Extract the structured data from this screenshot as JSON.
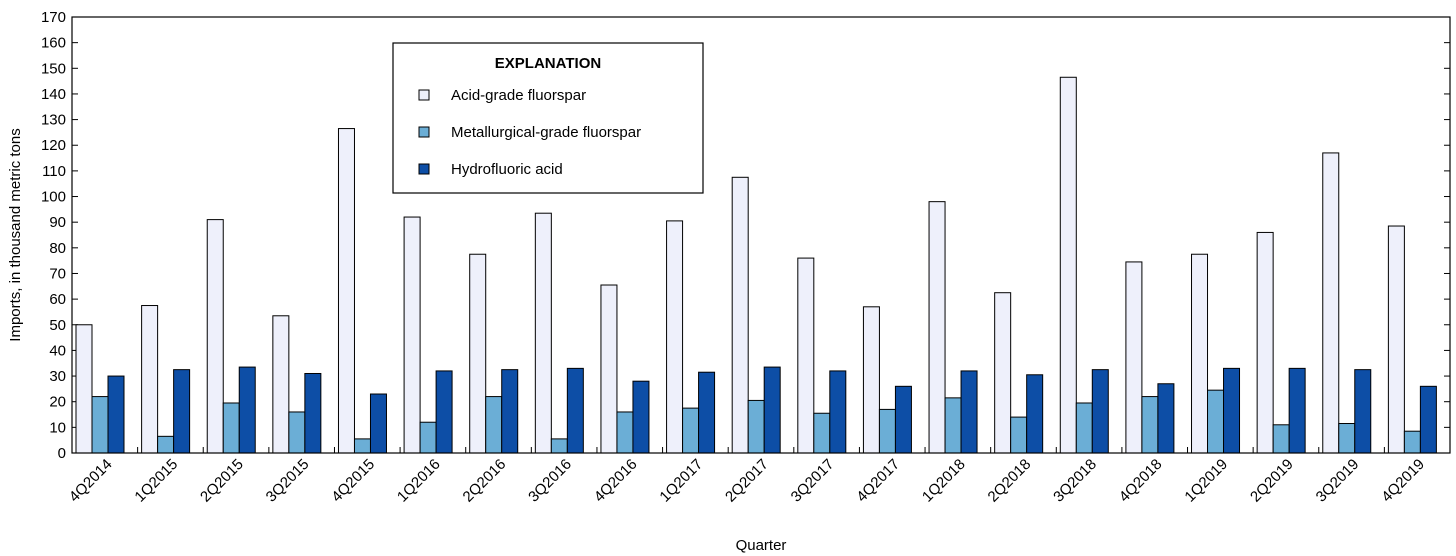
{
  "chart_data": {
    "type": "bar",
    "title": "",
    "xlabel": "Quarter",
    "ylabel": "Imports, in thousand metric tons",
    "ylim": [
      0,
      170
    ],
    "y_ticks": [
      0,
      10,
      20,
      30,
      40,
      50,
      60,
      70,
      80,
      90,
      100,
      110,
      120,
      130,
      140,
      150,
      160,
      170
    ],
    "grid": false,
    "legend": {
      "title": "EXPLANATION",
      "placement": "top-left"
    },
    "categories": [
      "4Q2014",
      "1Q2015",
      "2Q2015",
      "3Q2015",
      "4Q2015",
      "1Q2016",
      "2Q2016",
      "3Q2016",
      "4Q2016",
      "1Q2017",
      "2Q2017",
      "3Q2017",
      "4Q2017",
      "1Q2018",
      "2Q2018",
      "3Q2018",
      "4Q2018",
      "1Q2019",
      "2Q2019",
      "3Q2019",
      "4Q2019"
    ],
    "series": [
      {
        "name": "Acid-grade fluorspar",
        "color": "#eef0fb",
        "values": [
          50,
          57.5,
          91,
          53.5,
          126.5,
          92,
          77.5,
          93.5,
          65.5,
          90.5,
          107.5,
          76,
          57,
          98,
          62.5,
          146.5,
          74.5,
          77.5,
          86,
          117,
          88.5
        ]
      },
      {
        "name": "Metallurgical-grade fluorspar",
        "color": "#6baed6",
        "values": [
          22,
          6.5,
          19.5,
          16,
          5.5,
          12,
          22,
          5.5,
          16,
          17.5,
          20.5,
          15.5,
          17,
          21.5,
          14,
          19.5,
          22,
          24.5,
          11,
          11.5,
          8.5
        ]
      },
      {
        "name": "Hydrofluoric acid",
        "color": "#0d4ea6",
        "values": [
          30,
          32.5,
          33.5,
          31,
          23,
          32,
          32.5,
          33,
          28,
          31.5,
          33.5,
          32,
          26,
          32,
          30.5,
          32.5,
          27,
          33,
          33,
          32.5,
          26
        ]
      }
    ]
  }
}
